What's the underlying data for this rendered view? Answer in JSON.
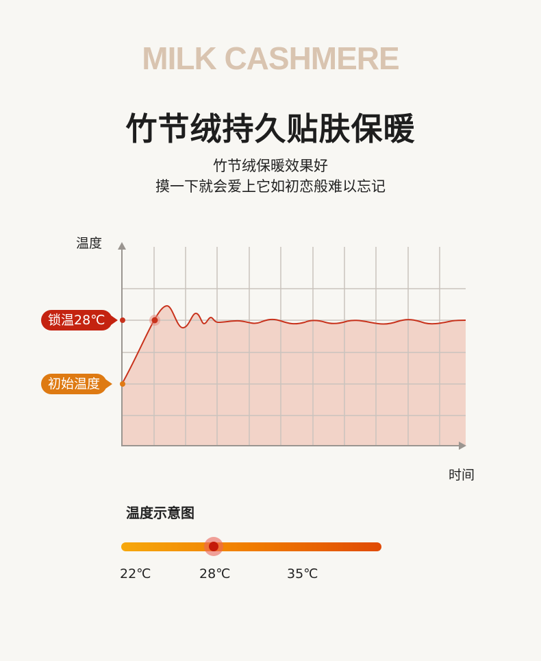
{
  "header": {
    "brand": "MILK CASHMERE",
    "title": "竹节绒持久贴肤保暖",
    "subtitle_1": "竹节绒保暖效果好",
    "subtitle_2": "摸一下就会爱上它如初恋般难以忘记"
  },
  "diagram": {
    "y_axis_label": "温度",
    "x_axis_label": "时间",
    "lock_tag": "锁温28℃",
    "initial_tag": "初始温度",
    "colors": {
      "line": "#c8321c",
      "fill": "#f2d3c8",
      "lock_tag": "#c42310",
      "initial_tag": "#de7a12"
    }
  },
  "scale": {
    "title": "温度示意图",
    "labels": [
      "22℃",
      "28℃",
      "35℃"
    ],
    "current": "28℃"
  }
}
